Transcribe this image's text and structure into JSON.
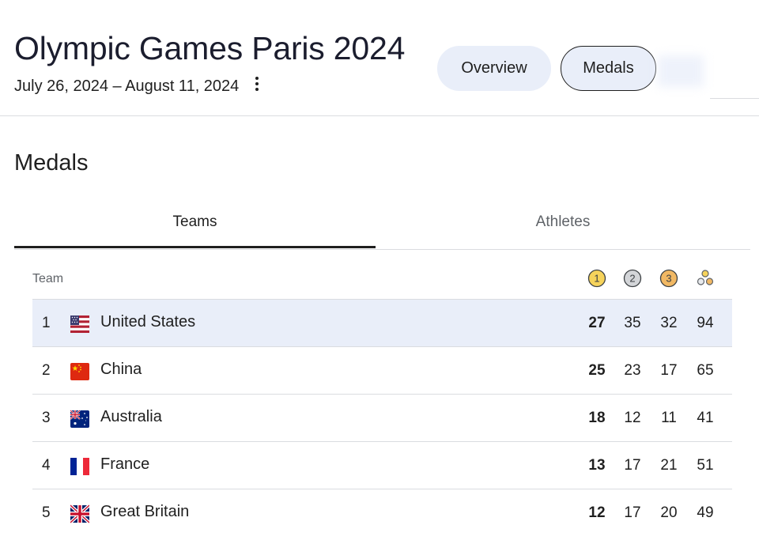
{
  "header": {
    "title": "Olympic Games Paris 2024",
    "dates": "July 26, 2024 – August 11, 2024",
    "chips": [
      {
        "label": "Overview",
        "selected": false
      },
      {
        "label": "Medals",
        "selected": true
      }
    ]
  },
  "section": {
    "title": "Medals"
  },
  "tabs": [
    {
      "label": "Teams",
      "active": true
    },
    {
      "label": "Athletes",
      "active": false
    }
  ],
  "table": {
    "team_header": "Team",
    "medal_icons": [
      {
        "name": "gold-medal-icon",
        "label": "1",
        "color": "#f6d35b"
      },
      {
        "name": "silver-medal-icon",
        "label": "2",
        "color": "#d3d5d8"
      },
      {
        "name": "bronze-medal-icon",
        "label": "3",
        "color": "#f1b863"
      },
      {
        "name": "total-medals-icon",
        "color": "#9aa0a6"
      }
    ],
    "rows": [
      {
        "rank": "1",
        "country": "United States",
        "gold": "27",
        "silver": "35",
        "bronze": "32",
        "total": "94",
        "highlighted": true
      },
      {
        "rank": "2",
        "country": "China",
        "gold": "25",
        "silver": "23",
        "bronze": "17",
        "total": "65"
      },
      {
        "rank": "3",
        "country": "Australia",
        "gold": "18",
        "silver": "12",
        "bronze": "11",
        "total": "41"
      },
      {
        "rank": "4",
        "country": "France",
        "gold": "13",
        "silver": "17",
        "bronze": "21",
        "total": "51"
      },
      {
        "rank": "5",
        "country": "Great Britain",
        "gold": "12",
        "silver": "17",
        "bronze": "20",
        "total": "49"
      }
    ]
  },
  "colors": {
    "selected_chip_bg": "#e9eef9",
    "highlight_row_bg": "#e9eef9",
    "divider": "#dadce0",
    "title_color": "#1b1d2e"
  }
}
